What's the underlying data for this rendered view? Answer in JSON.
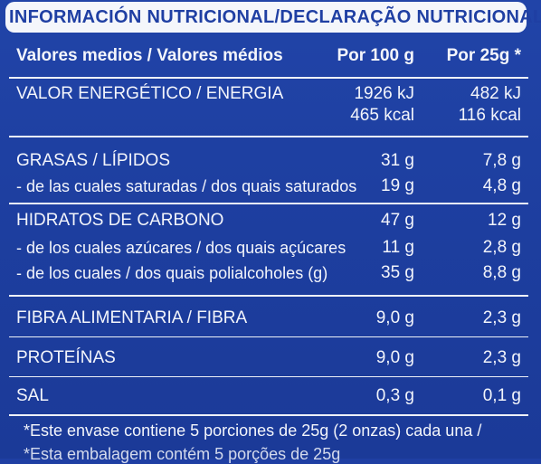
{
  "title": "INFORMACIÓN NUTRICIONAL/DECLARAÇÃO NUTRICIONAL",
  "header": {
    "label": "Valores medios / Valores médios",
    "col1": "Por 100 g",
    "col2": "Por 25g *"
  },
  "rows": [
    {
      "label": "VALOR ENERGÉTICO / ENERGIA",
      "c1": "1926 kJ",
      "c2": "482 kJ"
    },
    {
      "label": "",
      "c1": "465 kcal",
      "c2": "116 kcal"
    },
    {
      "label": "GRASAS / LÍPIDOS",
      "c1": "31 g",
      "c2": "7,8 g"
    },
    {
      "label": "- de las cuales  saturadas / dos quais saturados",
      "c1": "19 g",
      "c2": "4,8 g"
    },
    {
      "label": "HIDRATOS DE CARBONO",
      "c1": "47 g",
      "c2": "12 g"
    },
    {
      "label": "- de los cuales azúcares / dos quais açúcares",
      "c1": "11 g",
      "c2": "2,8 g"
    },
    {
      "label": "- de los cuales / dos quais polialcoholes (g)",
      "c1": "35 g",
      "c2": "8,8 g"
    },
    {
      "label": "FIBRA ALIMENTARIA / FIBRA",
      "c1": "9,0 g",
      "c2": "2,3 g"
    },
    {
      "label": "PROTEÍNAS",
      "c1": "9,0 g",
      "c2": "2,3 g"
    },
    {
      "label": "SAL",
      "c1": "0,3 g",
      "c2": "0,1 g"
    }
  ],
  "footnote": "*Este envase contiene 5 porciones de 25g (2 onzas) cada una /",
  "footnote2": "*Esta embalagem contém 5 porções de 25g"
}
